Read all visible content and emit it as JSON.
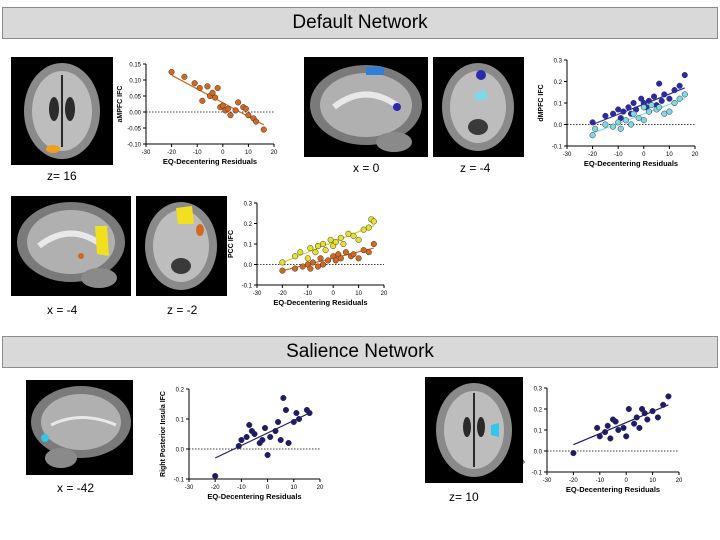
{
  "sections": [
    {
      "title": "Default Network"
    },
    {
      "title": "Salience Network"
    }
  ],
  "captions": [
    "z= 16",
    "x = 0",
    "z = -4",
    "x = -4",
    "z = -2",
    "x = -42",
    "z= 10"
  ],
  "colors": {
    "orange": "#d2691e",
    "yellow": "#e8e02a",
    "navy": "#1c1c6e",
    "blue": "#2a2ab0",
    "cyan": "#7fd8e8",
    "banner": "#d9d9d9"
  },
  "chart_data": [
    {
      "type": "scatter",
      "ylabel": "aMPFC IFC",
      "xlabel": "EQ-Decentering Residuals",
      "xlim": [
        -30,
        20
      ],
      "ylim": [
        -0.1,
        0.15
      ],
      "xticks": [
        "-30",
        "-20",
        "-10",
        "0",
        "10",
        "20"
      ],
      "yticks": [
        "-0.10",
        "-0.05",
        "0.00",
        "0.05",
        "0.10",
        "0.15"
      ],
      "ytick_values": [
        -0.1,
        -0.05,
        0.0,
        0.05,
        0.1,
        0.15
      ],
      "xtick_values": [
        -30,
        -20,
        -10,
        0,
        10,
        20
      ],
      "zero_line": 0,
      "series": [
        {
          "color": "#d2691e",
          "points": [
            [
              -20,
              0.125
            ],
            [
              -15,
              0.11
            ],
            [
              -11,
              0.09
            ],
            [
              -9,
              0.075
            ],
            [
              -8,
              0.035
            ],
            [
              -6,
              0.08
            ],
            [
              -5,
              0.05
            ],
            [
              -4,
              0.06
            ],
            [
              -3,
              0.045
            ],
            [
              -2,
              0.075
            ],
            [
              -1,
              0.015
            ],
            [
              0,
              0.02
            ],
            [
              1,
              0.005
            ],
            [
              2,
              0.01
            ],
            [
              3,
              -0.01
            ],
            [
              5,
              0.005
            ],
            [
              6,
              0.03
            ],
            [
              8,
              0.015
            ],
            [
              9,
              0.01
            ],
            [
              10,
              -0.01
            ],
            [
              12,
              -0.02
            ],
            [
              13,
              -0.03
            ],
            [
              16,
              -0.055
            ]
          ],
          "fit": [
            [
              -20,
              0.115
            ],
            [
              16,
              -0.04
            ]
          ]
        }
      ]
    },
    {
      "type": "scatter",
      "ylabel": "dMPFC IFC",
      "xlabel": "EQ-Decentering Residuals",
      "xlim": [
        -30,
        20
      ],
      "ylim": [
        -0.1,
        0.3
      ],
      "xticks": [
        "-30",
        "-20",
        "-10",
        "0",
        "10",
        "20"
      ],
      "yticks": [
        "-0.1",
        "0.0",
        "0.1",
        "0.2",
        "0.3"
      ],
      "ytick_values": [
        -0.1,
        0.0,
        0.1,
        0.2,
        0.3
      ],
      "xtick_values": [
        -30,
        -20,
        -10,
        0,
        10,
        20
      ],
      "zero_line": 0,
      "series": [
        {
          "color": "#2a2ab0",
          "points": [
            [
              -20,
              0.01
            ],
            [
              -15,
              0.04
            ],
            [
              -12,
              0.05
            ],
            [
              -10,
              0.07
            ],
            [
              -9,
              0.03
            ],
            [
              -8,
              0.06
            ],
            [
              -6,
              0.08
            ],
            [
              -5,
              0.05
            ],
            [
              -4,
              0.1
            ],
            [
              -3,
              0.07
            ],
            [
              -1,
              0.12
            ],
            [
              0,
              0.1
            ],
            [
              1,
              0.08
            ],
            [
              2,
              0.11
            ],
            [
              4,
              0.13
            ],
            [
              5,
              0.09
            ],
            [
              6,
              0.19
            ],
            [
              7,
              0.11
            ],
            [
              8,
              0.14
            ],
            [
              10,
              0.12
            ],
            [
              12,
              0.16
            ],
            [
              14,
              0.18
            ],
            [
              16,
              0.23
            ]
          ],
          "fit": [
            [
              -20,
              0.0
            ],
            [
              16,
              0.17
            ]
          ]
        },
        {
          "color": "#7fd8e8",
          "points": [
            [
              -20,
              -0.05
            ],
            [
              -19,
              -0.02
            ],
            [
              -15,
              0.0
            ],
            [
              -12,
              -0.01
            ],
            [
              -10,
              0.01
            ],
            [
              -9,
              -0.02
            ],
            [
              -7,
              0.02
            ],
            [
              -5,
              0.0
            ],
            [
              -4,
              0.05
            ],
            [
              -2,
              0.03
            ],
            [
              0,
              0.02
            ],
            [
              0,
              0.08
            ],
            [
              2,
              0.06
            ],
            [
              3,
              0.09
            ],
            [
              5,
              0.07
            ],
            [
              6,
              0.08
            ],
            [
              8,
              0.05
            ],
            [
              10,
              0.06
            ],
            [
              12,
              0.1
            ],
            [
              14,
              0.12
            ],
            [
              16,
              0.14
            ]
          ],
          "fit": [
            [
              -20,
              -0.04
            ],
            [
              16,
              0.12
            ]
          ]
        }
      ]
    },
    {
      "type": "scatter",
      "ylabel": "PCC IFC",
      "xlabel": "EQ-Decentering Residuals",
      "xlim": [
        -30,
        20
      ],
      "ylim": [
        -0.1,
        0.3
      ],
      "xticks": [
        "-30",
        "-20",
        "-10",
        "0",
        "10",
        "20"
      ],
      "yticks": [
        "-0.1",
        "0.0",
        "0.1",
        "0.2",
        "0.3"
      ],
      "ytick_values": [
        -0.1,
        0.0,
        0.1,
        0.2,
        0.3
      ],
      "xtick_values": [
        -30,
        -20,
        -10,
        0,
        10,
        20
      ],
      "zero_line": 0,
      "series": [
        {
          "color": "#e8e02a",
          "points": [
            [
              -20,
              0.01
            ],
            [
              -15,
              0.04
            ],
            [
              -13,
              0.06
            ],
            [
              -10,
              0.03
            ],
            [
              -9,
              0.08
            ],
            [
              -7,
              0.06
            ],
            [
              -6,
              0.09
            ],
            [
              -4,
              0.1
            ],
            [
              -3,
              0.07
            ],
            [
              -1,
              0.12
            ],
            [
              0,
              0.09
            ],
            [
              1,
              0.11
            ],
            [
              3,
              0.13
            ],
            [
              4,
              0.1
            ],
            [
              6,
              0.15
            ],
            [
              8,
              0.14
            ],
            [
              10,
              0.12
            ],
            [
              12,
              0.17
            ],
            [
              14,
              0.18
            ],
            [
              15,
              0.22
            ],
            [
              16,
              0.21
            ]
          ],
          "fit": [
            [
              -20,
              0.01
            ],
            [
              16,
              0.19
            ]
          ]
        },
        {
          "color": "#d2691e",
          "points": [
            [
              -20,
              -0.03
            ],
            [
              -15,
              -0.02
            ],
            [
              -12,
              -0.01
            ],
            [
              -10,
              0.0
            ],
            [
              -9,
              -0.02
            ],
            [
              -8,
              0.01
            ],
            [
              -6,
              -0.01
            ],
            [
              -5,
              0.03
            ],
            [
              -4,
              0.0
            ],
            [
              -2,
              0.02
            ],
            [
              0,
              0.04
            ],
            [
              1,
              0.02
            ],
            [
              2,
              0.05
            ],
            [
              3,
              0.03
            ],
            [
              5,
              0.06
            ],
            [
              7,
              0.04
            ],
            [
              8,
              0.05
            ],
            [
              10,
              0.03
            ],
            [
              12,
              0.07
            ],
            [
              14,
              0.06
            ],
            [
              16,
              0.1
            ]
          ],
          "fit": [
            [
              -20,
              -0.03
            ],
            [
              16,
              0.08
            ]
          ]
        }
      ]
    },
    {
      "type": "scatter",
      "ylabel": "Right Posterior Insula IFC",
      "xlabel": "EQ-Decentering Residuals",
      "xlim": [
        -30,
        20
      ],
      "ylim": [
        -0.1,
        0.2
      ],
      "xticks": [
        "-30",
        "-20",
        "-10",
        "0",
        "10",
        "20"
      ],
      "yticks": [
        "-0.1",
        "0.0",
        "0.1",
        "0.2"
      ],
      "ytick_values": [
        -0.1,
        0.0,
        0.1,
        0.2
      ],
      "xtick_values": [
        -30,
        -20,
        -10,
        0,
        10,
        20
      ],
      "zero_line": 0,
      "series": [
        {
          "color": "#1c1c6e",
          "points": [
            [
              -20,
              -0.09
            ],
            [
              -11,
              0.01
            ],
            [
              -10,
              0.03
            ],
            [
              -8,
              0.04
            ],
            [
              -7,
              0.08
            ],
            [
              -6,
              0.06
            ],
            [
              -5,
              0.05
            ],
            [
              -3,
              0.02
            ],
            [
              -2,
              0.03
            ],
            [
              -1,
              0.07
            ],
            [
              0,
              -0.02
            ],
            [
              1,
              0.04
            ],
            [
              3,
              0.06
            ],
            [
              4,
              0.09
            ],
            [
              5,
              0.03
            ],
            [
              6,
              0.17
            ],
            [
              7,
              0.13
            ],
            [
              8,
              0.02
            ],
            [
              10,
              0.09
            ],
            [
              11,
              0.12
            ],
            [
              12,
              0.1
            ],
            [
              15,
              0.13
            ],
            [
              16,
              0.12
            ]
          ],
          "fit": [
            [
              -20,
              -0.03
            ],
            [
              16,
              0.12
            ]
          ]
        }
      ]
    },
    {
      "type": "scatter",
      "ylabel": "Right Anterior Insula IFC",
      "xlabel": "EQ-Decentering Residuals",
      "xlim": [
        -30,
        20
      ],
      "ylim": [
        -0.1,
        0.3
      ],
      "xticks": [
        "-30",
        "-20",
        "-10",
        "0",
        "10",
        "20"
      ],
      "yticks": [
        "-0.1",
        "0.0",
        "0.1",
        "0.2",
        "0.3"
      ],
      "ytick_values": [
        -0.1,
        0.0,
        0.1,
        0.2,
        0.3
      ],
      "xtick_values": [
        -30,
        -20,
        -10,
        0,
        10,
        20
      ],
      "zero_line": 0,
      "series": [
        {
          "color": "#1c1c6e",
          "points": [
            [
              -20,
              -0.01
            ],
            [
              -11,
              0.11
            ],
            [
              -10,
              0.07
            ],
            [
              -8,
              0.09
            ],
            [
              -7,
              0.12
            ],
            [
              -6,
              0.06
            ],
            [
              -5,
              0.15
            ],
            [
              -4,
              0.14
            ],
            [
              -3,
              0.1
            ],
            [
              -1,
              0.11
            ],
            [
              0,
              0.07
            ],
            [
              1,
              0.2
            ],
            [
              3,
              0.13
            ],
            [
              4,
              0.16
            ],
            [
              5,
              0.11
            ],
            [
              6,
              0.2
            ],
            [
              7,
              0.18
            ],
            [
              8,
              0.15
            ],
            [
              10,
              0.19
            ],
            [
              12,
              0.16
            ],
            [
              14,
              0.22
            ],
            [
              16,
              0.26
            ]
          ],
          "fit": [
            [
              -20,
              0.03
            ],
            [
              16,
              0.22
            ]
          ]
        }
      ]
    }
  ]
}
